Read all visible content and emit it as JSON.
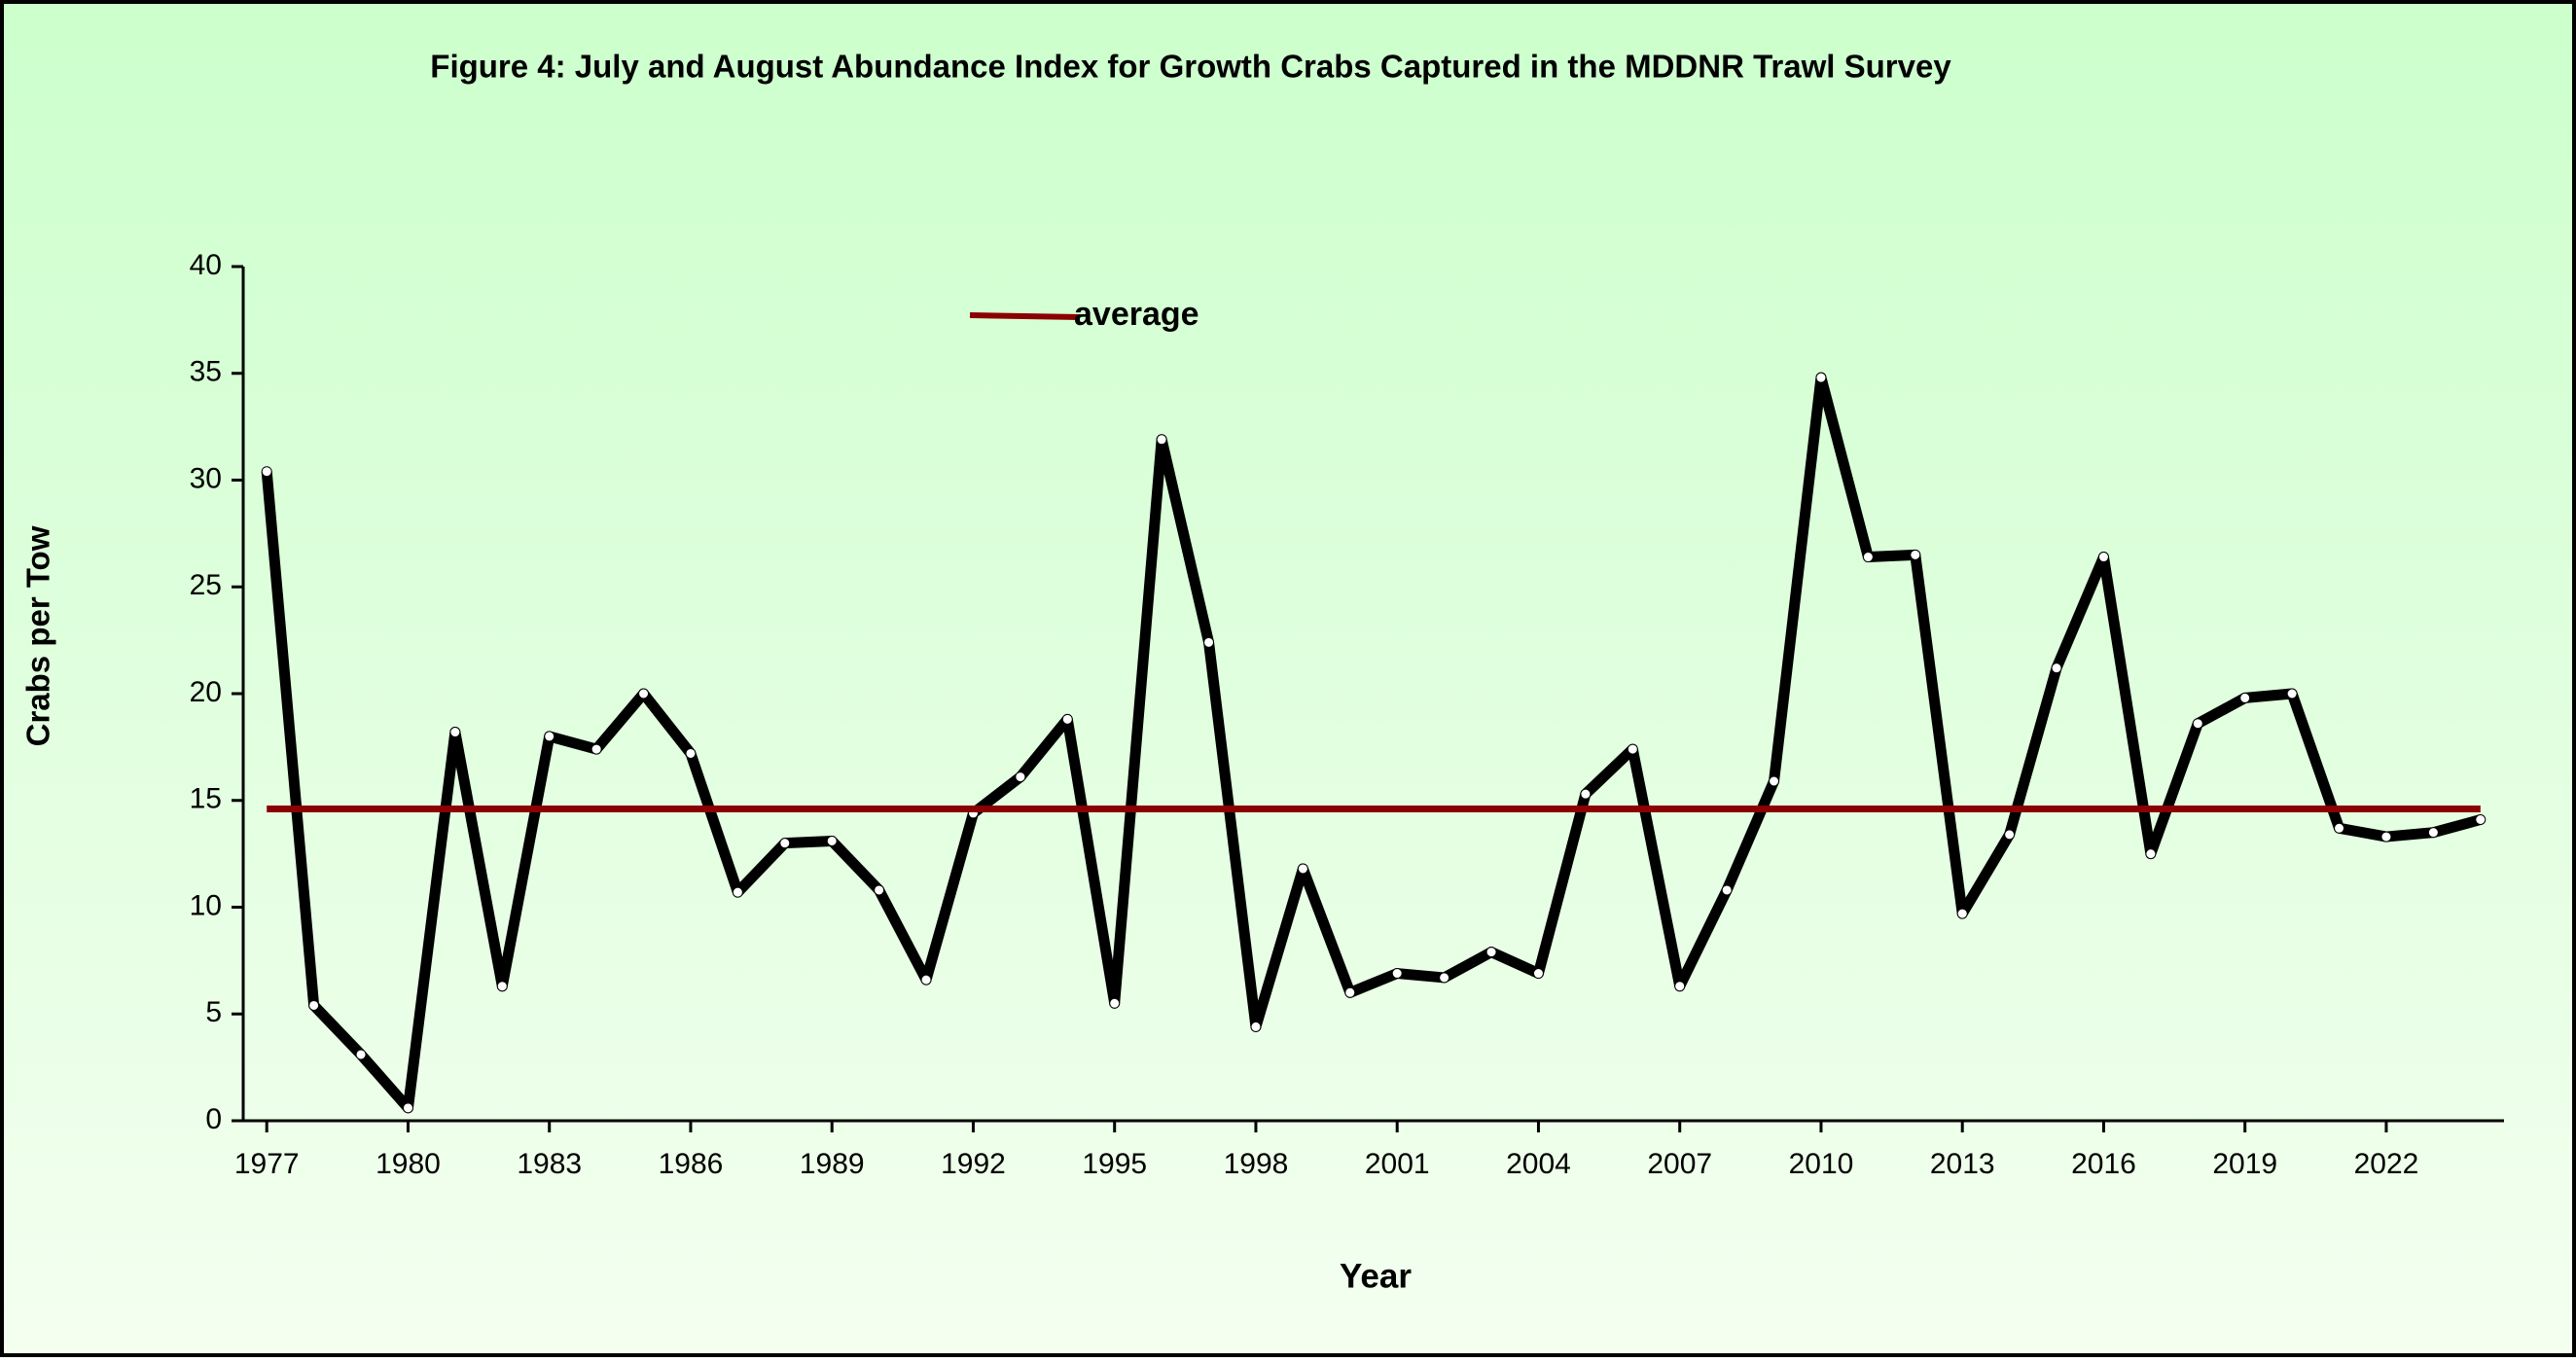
{
  "chart_data": {
    "type": "line",
    "title": "Figure 4: July and August Abundance Index for Growth Crabs Captured in the MDDNR Trawl Survey",
    "x_label": "Year",
    "y_label": "Crabs per Tow",
    "x": [
      1977,
      1978,
      1979,
      1980,
      1981,
      1982,
      1983,
      1984,
      1985,
      1986,
      1987,
      1988,
      1989,
      1990,
      1991,
      1992,
      1993,
      1994,
      1995,
      1996,
      1997,
      1998,
      1999,
      2000,
      2001,
      2002,
      2003,
      2004,
      2005,
      2006,
      2007,
      2008,
      2009,
      2010,
      2011,
      2012,
      2013,
      2014,
      2015,
      2016,
      2017,
      2018,
      2019,
      2020,
      2021,
      2022,
      2023,
      2024
    ],
    "series": [
      {
        "name": null,
        "color": "#000000",
        "markers": true,
        "values": [
          30.4,
          5.4,
          3.1,
          0.6,
          18.2,
          6.3,
          18.0,
          17.4,
          20.0,
          17.2,
          10.7,
          13.0,
          13.1,
          10.8,
          6.6,
          14.4,
          16.1,
          18.8,
          5.5,
          31.9,
          22.4,
          4.4,
          11.8,
          6.0,
          6.9,
          6.7,
          7.9,
          6.9,
          15.3,
          17.4,
          6.3,
          10.8,
          15.9,
          34.8,
          26.4,
          26.5,
          9.7,
          13.4,
          21.2,
          26.4,
          12.5,
          18.6,
          19.8,
          20.0,
          13.7,
          13.3,
          13.5,
          14.1
        ]
      },
      {
        "name": "average",
        "color": "#8b0000",
        "markers": false,
        "values": [
          14.6,
          14.6,
          14.6,
          14.6,
          14.6,
          14.6,
          14.6,
          14.6,
          14.6,
          14.6,
          14.6,
          14.6,
          14.6,
          14.6,
          14.6,
          14.6,
          14.6,
          14.6,
          14.6,
          14.6,
          14.6,
          14.6,
          14.6,
          14.6,
          14.6,
          14.6,
          14.6,
          14.6,
          14.6,
          14.6,
          14.6,
          14.6,
          14.6,
          14.6,
          14.6,
          14.6,
          14.6,
          14.6,
          14.6,
          14.6,
          14.6,
          14.6,
          14.6,
          14.6,
          14.6,
          14.6,
          14.6,
          14.6
        ]
      }
    ],
    "xlim": [
      1976.5,
      2024.5
    ],
    "xticks": [
      1977,
      1980,
      1983,
      1986,
      1989,
      1992,
      1995,
      1998,
      2001,
      2004,
      2007,
      2010,
      2013,
      2016,
      2019,
      2022
    ],
    "ylim": [
      0,
      40
    ],
    "yticks": [
      0,
      5,
      10,
      15,
      20,
      25,
      30,
      35,
      40
    ],
    "grid": false
  }
}
